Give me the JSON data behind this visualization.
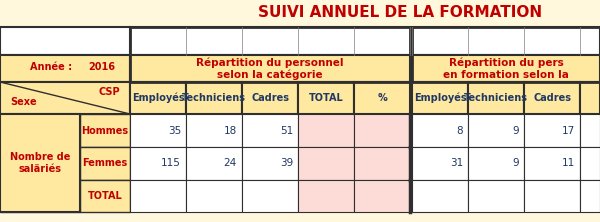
{
  "title": "SUIVI ANNUEL DE LA FORMATION",
  "title_color": "#C00000",
  "bg_color": "#FFF8DC",
  "header_bg": "#FFE8A0",
  "white_bg": "#FFFFFF",
  "pink_bg": "#FDDCD8",
  "red_text": "#C00000",
  "dark_text": "#1F3864",
  "border_color": "#2F2F2F",
  "gray_border": "#808080",
  "col1_header": "Répartition du personnel\nselon la catégorie",
  "col2_header": "Répartition du pers\nen formation selon la",
  "année": "Année :",
  "year": "2016",
  "sexe_label": "Sexe",
  "csp_label": "CSP",
  "nombre_label": "Nombre de\nsaläriés",
  "col_headers1": [
    "Employés",
    "Techniciens",
    "Cadres",
    "TOTAL",
    "%"
  ],
  "col_headers2": [
    "Employés",
    "Techniciens",
    "Cadres"
  ],
  "row_labels": [
    "Hommes",
    "Femmes",
    "TOTAL"
  ],
  "data_hommes": [
    35,
    18,
    51,
    "",
    ""
  ],
  "data_femmes": [
    115,
    24,
    39,
    "",
    ""
  ],
  "data_total": [
    "",
    "",
    "",
    "",
    ""
  ],
  "data2_hommes": [
    8,
    9,
    17
  ],
  "data2_femmes": [
    31,
    9,
    11
  ],
  "data2_total": [
    "",
    "",
    ""
  ]
}
